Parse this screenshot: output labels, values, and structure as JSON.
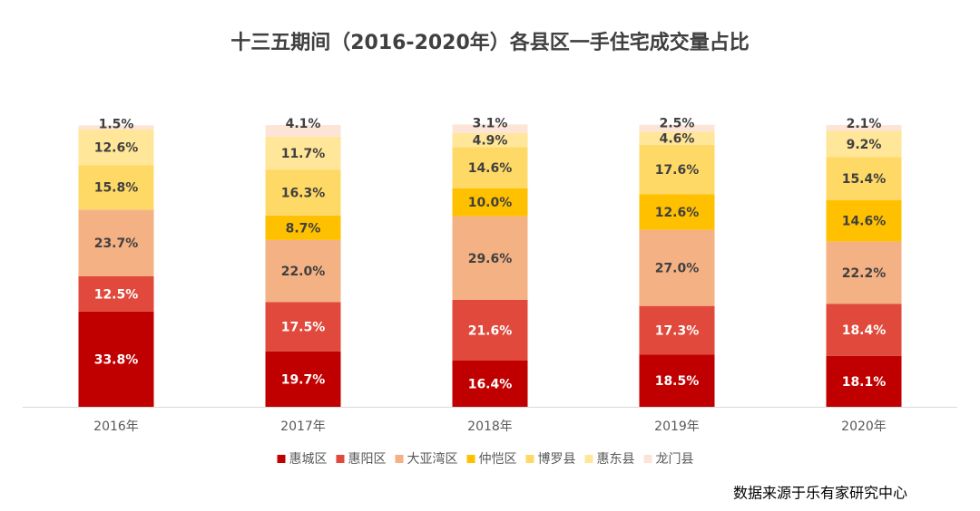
{
  "chart_data": {
    "type": "stacked_bar",
    "title": "十三五期间（2016-2020年）各县区一手住宅成交量占比",
    "source": "数据来源于乐有家研究中心",
    "categories": [
      "2016年",
      "2017年",
      "2018年",
      "2019年",
      "2020年"
    ],
    "ylim": [
      0,
      100
    ],
    "series": [
      {
        "name": "惠城区",
        "color": "#c00000",
        "values": [
          33.8,
          19.7,
          16.4,
          18.5,
          18.1
        ],
        "value_labels": [
          "33.8%",
          "19.7%",
          "16.4%",
          "18.5%",
          "18.1%"
        ]
      },
      {
        "name": "惠阳区",
        "color": "#e0493b",
        "values": [
          12.5,
          17.5,
          21.6,
          17.3,
          18.4
        ],
        "value_labels": [
          "12.5%",
          "17.5%",
          "21.6%",
          "17.3%",
          "18.4%"
        ]
      },
      {
        "name": "大亚湾区",
        "color": "#f4b183",
        "values": [
          23.7,
          22.0,
          29.6,
          27.0,
          22.2
        ],
        "value_labels": [
          "23.7%",
          "22.0%",
          "29.6%",
          "27.0%",
          "22.2%"
        ]
      },
      {
        "name": "仲恺区",
        "color": "#ffc000",
        "values": [
          null,
          8.7,
          10.0,
          12.6,
          14.6
        ],
        "value_labels": [
          null,
          "8.7%",
          "10.0%",
          "12.6%",
          "14.6%"
        ]
      },
      {
        "name": "博罗县",
        "color": "#ffd966",
        "values": [
          15.8,
          16.3,
          14.6,
          17.6,
          15.4
        ],
        "value_labels": [
          "15.8%",
          "16.3%",
          "14.6%",
          "17.6%",
          "15.4%"
        ]
      },
      {
        "name": "惠东县",
        "color": "#ffe699",
        "values": [
          12.6,
          11.7,
          4.9,
          4.6,
          9.2
        ],
        "value_labels": [
          "12.6%",
          "11.7%",
          "4.9%",
          "4.6%",
          "9.2%"
        ]
      },
      {
        "name": "龙门县",
        "color": "#fce4d6",
        "values": [
          1.5,
          4.1,
          3.1,
          2.5,
          2.1
        ],
        "value_labels": [
          "1.5%",
          "4.1%",
          "3.1%",
          "2.5%",
          "2.1%"
        ]
      }
    ]
  }
}
